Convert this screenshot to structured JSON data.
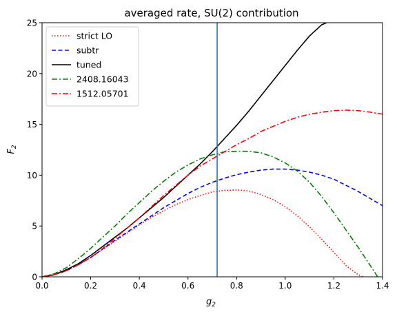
{
  "chart_data": {
    "type": "line",
    "title": "averaged rate, SU(2) contribution",
    "xlabel": "g",
    "xlabel_sub": "2",
    "ylabel": "F",
    "ylabel_sub": "2",
    "xlim": [
      0,
      1.4
    ],
    "ylim": [
      0,
      25
    ],
    "xticks": [
      0.0,
      0.2,
      0.4,
      0.6,
      0.8,
      1.0,
      1.2,
      1.4
    ],
    "xtick_labels": [
      "0.0",
      "0.2",
      "0.4",
      "0.6",
      "0.8",
      "1.0",
      "1.2",
      "1.4"
    ],
    "yticks": [
      0,
      5,
      10,
      15,
      20,
      25
    ],
    "ytick_labels": [
      "0",
      "5",
      "10",
      "15",
      "20",
      "25"
    ],
    "grid": false,
    "legend_position": "top-left",
    "vline": {
      "x": 0.72,
      "color": "#1f77b4"
    },
    "series": [
      {
        "name": "strict LO",
        "color": "#ff0000",
        "style": "dotted",
        "x": [
          0.0,
          0.05,
          0.1,
          0.15,
          0.2,
          0.25,
          0.3,
          0.35,
          0.4,
          0.45,
          0.5,
          0.55,
          0.6,
          0.65,
          0.7,
          0.75,
          0.8,
          0.85,
          0.9,
          0.95,
          1.0,
          1.05,
          1.1,
          1.15,
          1.2,
          1.25,
          1.3,
          1.32
        ],
        "y": [
          0.0,
          0.2,
          0.6,
          1.2,
          1.9,
          2.7,
          3.5,
          4.3,
          5.1,
          5.85,
          6.5,
          7.1,
          7.6,
          8.0,
          8.35,
          8.5,
          8.55,
          8.45,
          8.1,
          7.6,
          6.9,
          6.0,
          4.9,
          3.7,
          2.4,
          1.1,
          0.2,
          0.0
        ]
      },
      {
        "name": "subtr",
        "color": "#0000ff",
        "style": "dashed",
        "x": [
          0.0,
          0.05,
          0.1,
          0.15,
          0.2,
          0.25,
          0.3,
          0.35,
          0.4,
          0.45,
          0.5,
          0.55,
          0.6,
          0.65,
          0.7,
          0.75,
          0.8,
          0.85,
          0.9,
          0.95,
          1.0,
          1.05,
          1.1,
          1.15,
          1.2,
          1.25,
          1.3,
          1.35,
          1.4
        ],
        "y": [
          0.0,
          0.2,
          0.6,
          1.2,
          1.9,
          2.75,
          3.6,
          4.4,
          5.2,
          6.0,
          6.8,
          7.5,
          8.2,
          8.8,
          9.3,
          9.7,
          10.05,
          10.3,
          10.5,
          10.6,
          10.6,
          10.5,
          10.3,
          10.0,
          9.6,
          9.0,
          8.4,
          7.7,
          7.0
        ]
      },
      {
        "name": "tuned",
        "color": "#000000",
        "style": "solid",
        "x": [
          0.0,
          0.05,
          0.1,
          0.15,
          0.2,
          0.25,
          0.3,
          0.35,
          0.4,
          0.45,
          0.5,
          0.55,
          0.6,
          0.65,
          0.7,
          0.75,
          0.8,
          0.85,
          0.9,
          0.95,
          1.0,
          1.05,
          1.1,
          1.15,
          1.17
        ],
        "y": [
          0.0,
          0.2,
          0.7,
          1.3,
          2.1,
          3.0,
          3.9,
          4.8,
          5.8,
          6.8,
          7.8,
          8.9,
          10.0,
          11.1,
          12.3,
          13.6,
          14.9,
          16.3,
          17.8,
          19.3,
          20.8,
          22.3,
          23.7,
          24.8,
          25.0
        ]
      },
      {
        "name": "2408.16043",
        "color": "#008000",
        "style": "dashdot",
        "x": [
          0.0,
          0.05,
          0.1,
          0.15,
          0.2,
          0.25,
          0.3,
          0.35,
          0.4,
          0.45,
          0.5,
          0.55,
          0.6,
          0.65,
          0.7,
          0.75,
          0.8,
          0.85,
          0.9,
          0.95,
          1.0,
          1.05,
          1.1,
          1.15,
          1.2,
          1.25,
          1.3,
          1.35,
          1.38
        ],
        "y": [
          0.0,
          0.3,
          0.9,
          1.8,
          2.8,
          3.9,
          5.0,
          6.2,
          7.3,
          8.4,
          9.4,
          10.3,
          11.0,
          11.6,
          12.0,
          12.3,
          12.35,
          12.35,
          12.2,
          11.8,
          11.2,
          10.4,
          9.3,
          7.9,
          6.3,
          4.6,
          2.9,
          1.1,
          0.0
        ]
      },
      {
        "name": "1512.05701",
        "color": "#ff0000",
        "style": "dashdot",
        "x": [
          0.0,
          0.05,
          0.1,
          0.15,
          0.2,
          0.25,
          0.3,
          0.35,
          0.4,
          0.45,
          0.5,
          0.55,
          0.6,
          0.65,
          0.7,
          0.75,
          0.8,
          0.85,
          0.9,
          0.95,
          1.0,
          1.05,
          1.1,
          1.15,
          1.2,
          1.25,
          1.3,
          1.35,
          1.4
        ],
        "y": [
          0.0,
          0.2,
          0.6,
          1.2,
          1.9,
          2.8,
          3.8,
          4.8,
          5.8,
          6.9,
          8.0,
          9.0,
          10.0,
          10.9,
          11.6,
          12.3,
          13.0,
          13.6,
          14.3,
          14.8,
          15.3,
          15.7,
          16.0,
          16.2,
          16.35,
          16.4,
          16.35,
          16.2,
          16.0
        ]
      }
    ]
  }
}
